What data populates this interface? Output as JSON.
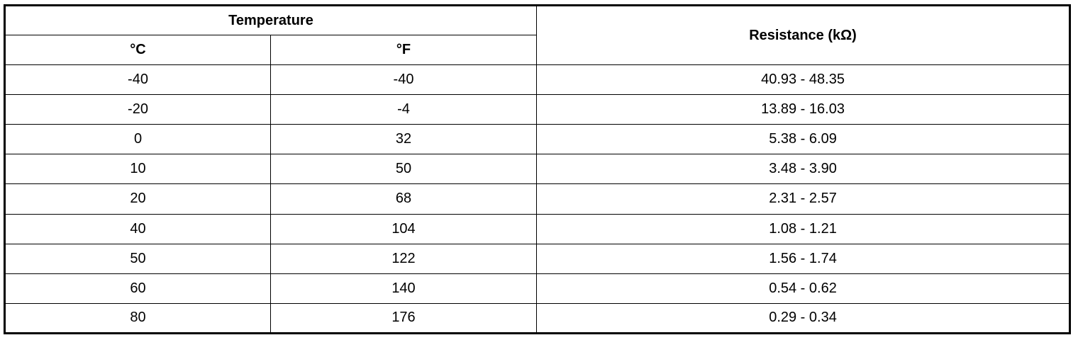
{
  "table": {
    "header": {
      "temperature": "Temperature",
      "celsius": "°C",
      "fahrenheit": "°F",
      "resistance": "Resistance (kΩ)"
    },
    "rows": [
      {
        "c": "-40",
        "f": "-40",
        "r": "40.93 - 48.35"
      },
      {
        "c": "-20",
        "f": "-4",
        "r": "13.89 - 16.03"
      },
      {
        "c": "0",
        "f": "32",
        "r": "5.38 - 6.09"
      },
      {
        "c": "10",
        "f": "50",
        "r": "3.48 - 3.90"
      },
      {
        "c": "20",
        "f": "68",
        "r": "2.31 - 2.57"
      },
      {
        "c": "40",
        "f": "104",
        "r": "1.08 - 1.21"
      },
      {
        "c": "50",
        "f": "122",
        "r": "1.56 - 1.74"
      },
      {
        "c": "60",
        "f": "140",
        "r": "0.54 - 0.62"
      },
      {
        "c": "80",
        "f": "176",
        "r": "0.29 - 0.34"
      }
    ]
  }
}
